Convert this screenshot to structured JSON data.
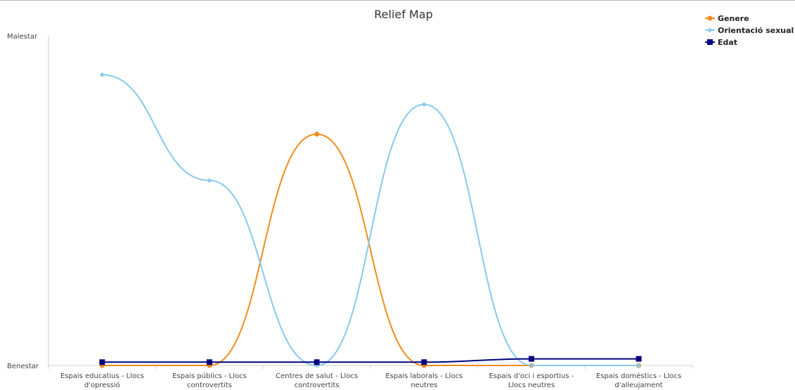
{
  "chart_data": {
    "type": "line",
    "title": "Relief Map",
    "y_labels": {
      "top": "Malestar",
      "bottom": "Benestar"
    },
    "ylim": [
      0,
      100
    ],
    "grid": false,
    "legend_position": "top-right",
    "categories": [
      [
        "Espais educatius - Llocs",
        "d'opressió"
      ],
      [
        "Espais públics - Llocs",
        "controvertits"
      ],
      [
        "Centres de salut - Llocs",
        "controvertits"
      ],
      [
        "Espais laborals - Llocs",
        "neutres"
      ],
      [
        "Espais d'oci i esportius -",
        "Llocs neutres"
      ],
      [
        "Espais domèstics - Llocs",
        "d'alleujament"
      ]
    ],
    "series": [
      {
        "name": "Genere",
        "color": "#f28c1a",
        "marker": "circle",
        "values": [
          0,
          0,
          70,
          0,
          0,
          0
        ]
      },
      {
        "name": "Orientació sexual",
        "color": "#88c9ee",
        "marker": "diamond",
        "values": [
          88,
          56,
          0,
          79,
          0,
          0
        ]
      },
      {
        "name": "Edat",
        "color": "#00007f",
        "marker": "square",
        "values": [
          1,
          1,
          1,
          1,
          2,
          2
        ]
      }
    ]
  }
}
